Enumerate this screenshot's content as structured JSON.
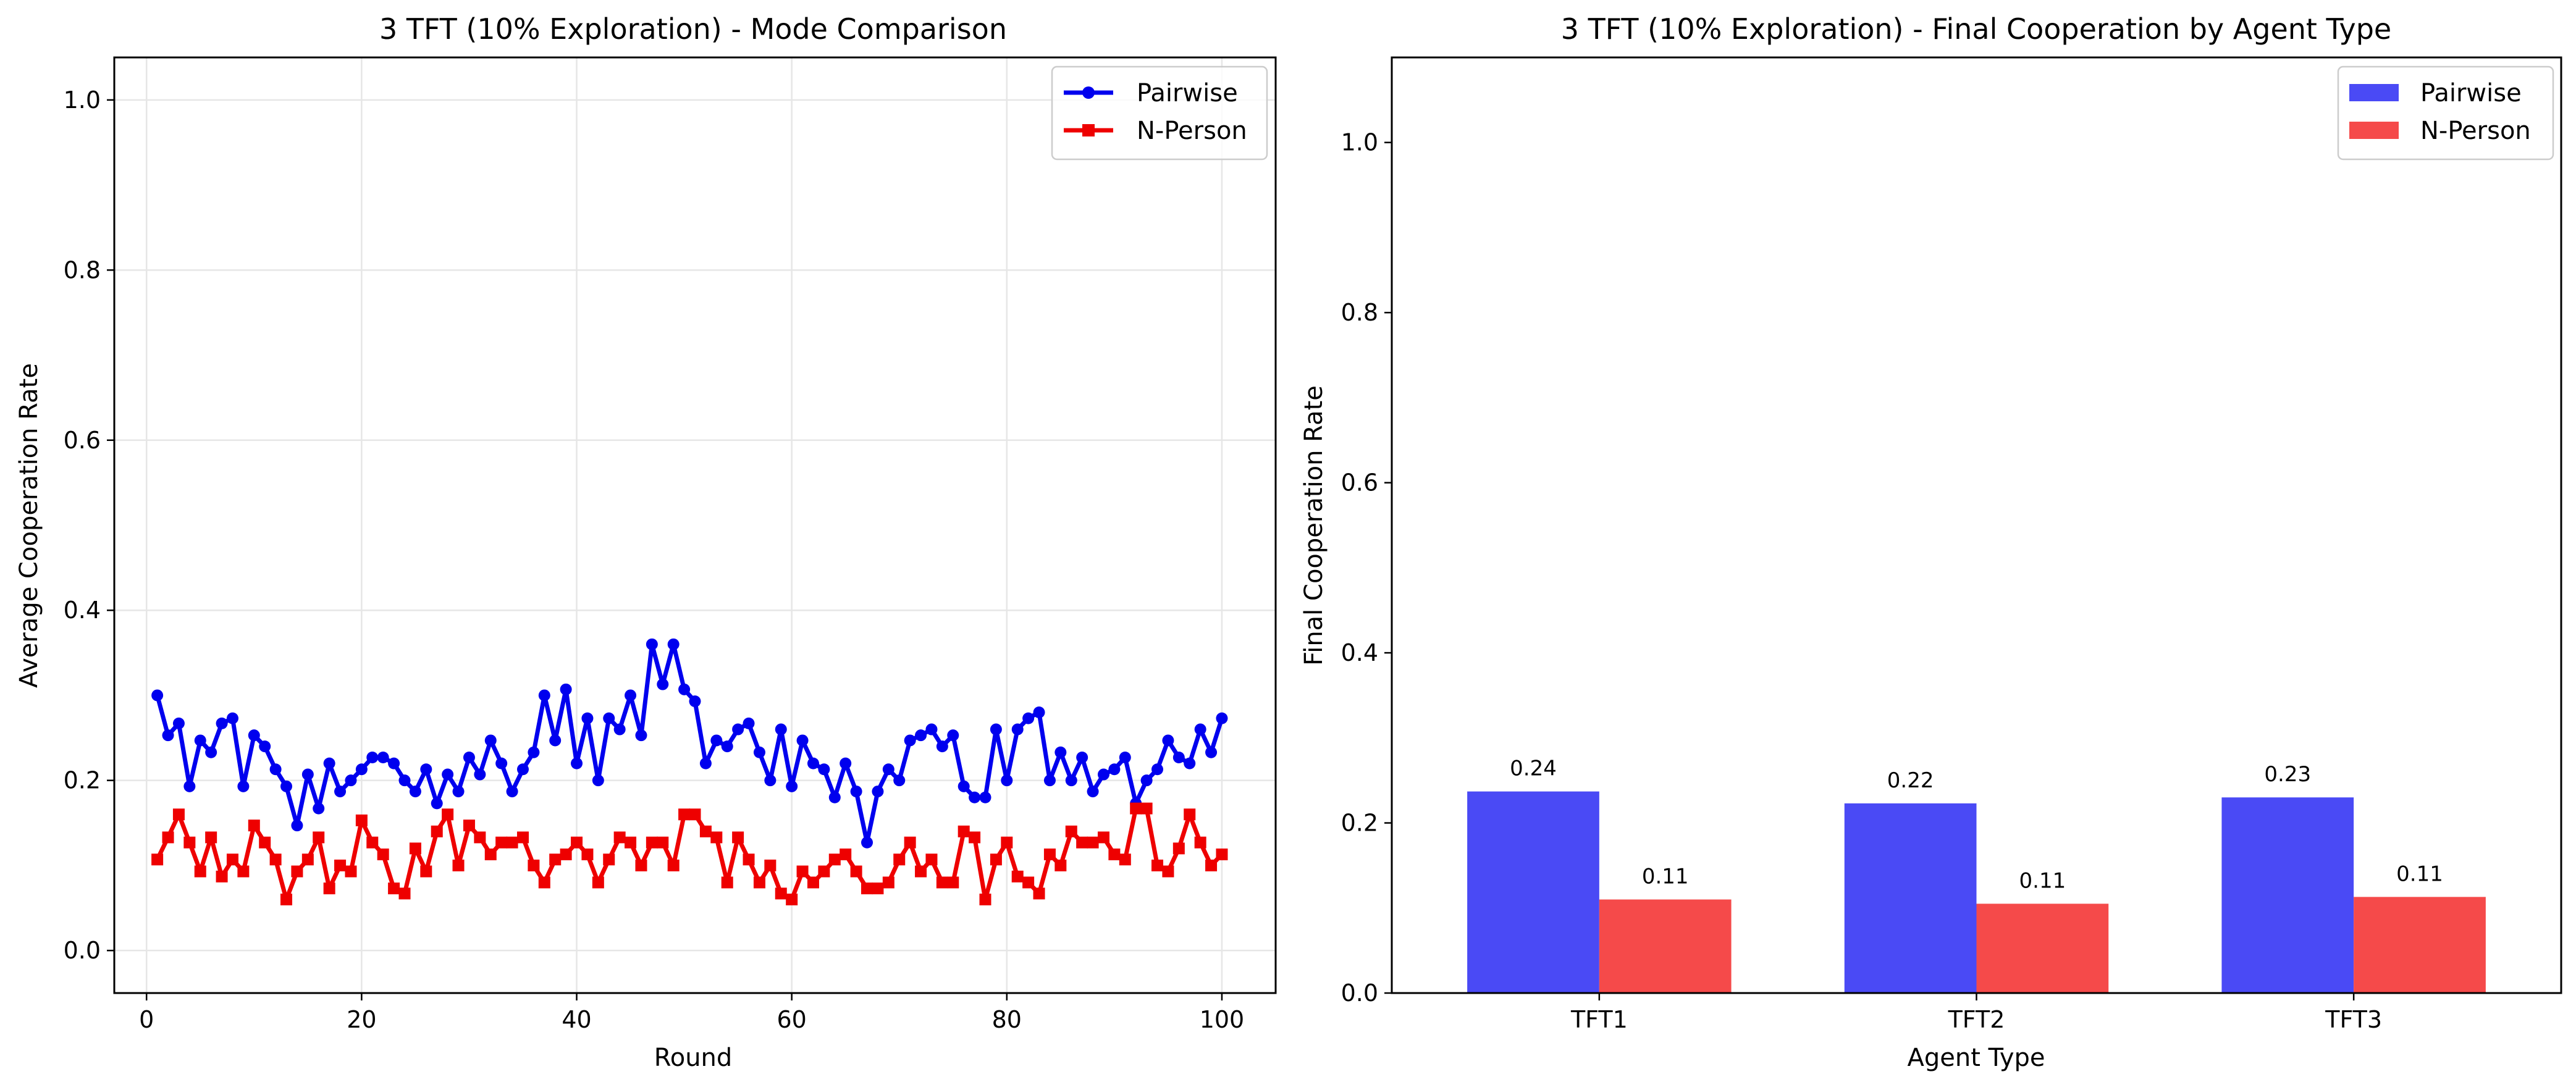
{
  "chart_data": [
    {
      "type": "line",
      "title": "3 TFT (10% Exploration) - Mode Comparison",
      "xlabel": "Round",
      "ylabel": "Average Cooperation Rate",
      "xlim": [
        -3,
        105
      ],
      "ylim": [
        -0.05,
        1.05
      ],
      "xticks": [
        0,
        20,
        40,
        60,
        80,
        100
      ],
      "yticks": [
        0.0,
        0.2,
        0.4,
        0.6,
        0.8,
        1.0
      ],
      "grid": true,
      "legend": "top-right",
      "x": [
        1,
        2,
        3,
        4,
        5,
        6,
        7,
        8,
        9,
        10,
        11,
        12,
        13,
        14,
        15,
        16,
        17,
        18,
        19,
        20,
        21,
        22,
        23,
        24,
        25,
        26,
        27,
        28,
        29,
        30,
        31,
        32,
        33,
        34,
        35,
        36,
        37,
        38,
        39,
        40,
        41,
        42,
        43,
        44,
        45,
        46,
        47,
        48,
        49,
        50,
        51,
        52,
        53,
        54,
        55,
        56,
        57,
        58,
        59,
        60,
        61,
        62,
        63,
        64,
        65,
        66,
        67,
        68,
        69,
        70,
        71,
        72,
        73,
        74,
        75,
        76,
        77,
        78,
        79,
        80,
        81,
        82,
        83,
        84,
        85,
        86,
        87,
        88,
        89,
        90,
        91,
        92,
        93,
        94,
        95,
        96,
        97,
        98,
        99,
        100
      ],
      "series": [
        {
          "name": "Pairwise",
          "color": "#0000ee",
          "marker": "circle",
          "values": [
            0.3,
            0.253,
            0.267,
            0.193,
            0.247,
            0.233,
            0.267,
            0.273,
            0.193,
            0.253,
            0.24,
            0.213,
            0.193,
            0.147,
            0.207,
            0.167,
            0.22,
            0.187,
            0.2,
            0.213,
            0.227,
            0.227,
            0.22,
            0.2,
            0.187,
            0.213,
            0.173,
            0.207,
            0.187,
            0.227,
            0.207,
            0.247,
            0.22,
            0.187,
            0.213,
            0.233,
            0.3,
            0.247,
            0.307,
            0.22,
            0.273,
            0.2,
            0.273,
            0.26,
            0.3,
            0.253,
            0.36,
            0.313,
            0.36,
            0.307,
            0.293,
            0.22,
            0.247,
            0.24,
            0.26,
            0.267,
            0.233,
            0.2,
            0.26,
            0.193,
            0.247,
            0.22,
            0.213,
            0.18,
            0.22,
            0.187,
            0.127,
            0.187,
            0.213,
            0.2,
            0.247,
            0.253,
            0.26,
            0.24,
            0.253,
            0.193,
            0.18,
            0.18,
            0.26,
            0.2,
            0.26,
            0.273,
            0.28,
            0.2,
            0.233,
            0.2,
            0.227,
            0.187,
            0.207,
            0.213,
            0.227,
            0.173,
            0.2,
            0.213,
            0.247,
            0.227,
            0.22,
            0.26,
            0.233,
            0.273
          ]
        },
        {
          "name": "N-Person",
          "color": "#ee0000",
          "marker": "square",
          "values": [
            0.107,
            0.133,
            0.16,
            0.127,
            0.093,
            0.133,
            0.087,
            0.107,
            0.093,
            0.147,
            0.127,
            0.107,
            0.06,
            0.093,
            0.107,
            0.133,
            0.073,
            0.1,
            0.093,
            0.153,
            0.127,
            0.113,
            0.073,
            0.067,
            0.12,
            0.093,
            0.14,
            0.16,
            0.1,
            0.147,
            0.133,
            0.113,
            0.127,
            0.127,
            0.133,
            0.1,
            0.08,
            0.107,
            0.113,
            0.127,
            0.113,
            0.08,
            0.107,
            0.133,
            0.127,
            0.1,
            0.127,
            0.127,
            0.1,
            0.16,
            0.16,
            0.14,
            0.133,
            0.08,
            0.133,
            0.107,
            0.08,
            0.1,
            0.067,
            0.06,
            0.093,
            0.08,
            0.093,
            0.107,
            0.113,
            0.093,
            0.073,
            0.073,
            0.08,
            0.107,
            0.127,
            0.093,
            0.107,
            0.08,
            0.08,
            0.14,
            0.133,
            0.06,
            0.107,
            0.127,
            0.087,
            0.08,
            0.067,
            0.113,
            0.1,
            0.14,
            0.127,
            0.127,
            0.133,
            0.113,
            0.107,
            0.167,
            0.167,
            0.1,
            0.093,
            0.12,
            0.16,
            0.127,
            0.1,
            0.113
          ]
        }
      ]
    },
    {
      "type": "bar",
      "title": "3 TFT (10% Exploration) - Final Cooperation by Agent Type",
      "xlabel": "Agent Type",
      "ylabel": "Final Cooperation Rate",
      "ylim": [
        0,
        1.1
      ],
      "yticks": [
        0.0,
        0.2,
        0.4,
        0.6,
        0.8,
        1.0
      ],
      "grid": false,
      "legend": "top-right",
      "categories": [
        "TFT1",
        "TFT2",
        "TFT3"
      ],
      "series": [
        {
          "name": "Pairwise",
          "color": "#4a4af5",
          "values": [
            0.237,
            0.223,
            0.23
          ],
          "labels": [
            "0.24",
            "0.22",
            "0.23"
          ]
        },
        {
          "name": "N-Person",
          "color": "#f54a4a",
          "values": [
            0.11,
            0.105,
            0.113
          ],
          "labels": [
            "0.11",
            "0.11",
            "0.11"
          ]
        }
      ]
    }
  ]
}
